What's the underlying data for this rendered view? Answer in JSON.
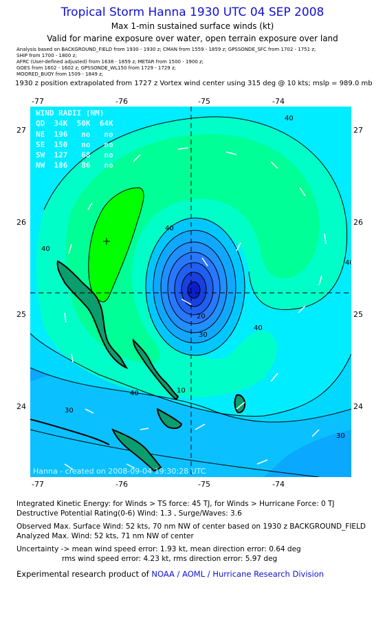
{
  "header": {
    "title": "Tropical Storm Hanna 1930 UTC 04 SEP 2008",
    "subtitle1": "Max 1-min sustained surface winds (kt)",
    "subtitle2": "Valid for marine exposure over water, open terrain exposure over land"
  },
  "sources": [
    "Analysis based on  BACKGROUND_FIELD from 1930 - 1930 z;  CMAN from 1559 - 1859 z;  GPSSONDE_SFC from 1702 - 1751 z;",
    "SHIP from 1700 - 1800 z;",
    "AFRC (User-defined adjusted) from 1638 - 1859 z;  METAR from 1500 - 1900 z;",
    "GOES from 1602 - 1602 z;  GPSSONDE_WL150 from 1729 - 1729 z;",
    "MOORED_BUOY from 1509 - 1849 z;"
  ],
  "position_note": "1930 z position extrapolated from 1727 z Vortex wind center using 315 deg @ 10 kts; mslp = 989.0 mb",
  "map": {
    "lon_ticks": [
      "-77",
      "-76",
      "-75",
      "-74"
    ],
    "lat_ticks": [
      "27",
      "26",
      "25",
      "24"
    ],
    "contour_labels": [
      "40",
      "40",
      "40",
      "40",
      "40",
      "40",
      "30",
      "30",
      "30",
      "20",
      "10"
    ],
    "wind_radii": {
      "title": "WIND RADII (NM)",
      "header": "QD  34K  50K  64K",
      "rows": [
        "NE  196   no   no",
        "SE  150   no   no",
        "SW  127   68   no",
        "NW  186   86   no"
      ]
    },
    "credit": "Hanna - created on 2008-09-04  19:30:28 UTC",
    "colors": {
      "ocean_deep": "#0aa8ff",
      "ocean_30": "#00d8ff",
      "band_40": "#00ffdc",
      "band_45": "#00ff96",
      "band_50": "#00ff00",
      "core_blue": "#1040ff"
    }
  },
  "info": {
    "ike": "Integrated Kinetic Energy:  for Winds > TS force: 45 TJ,  for Winds > Hurricane Force: 0 TJ",
    "dpr": "Destructive Potential Rating(0-6)   Wind: 1.3 , Surge/Waves: 3.6",
    "observed_max": "Observed Max. Surface Wind: 52 kts, 70 nm NW of center based on 1930 z BACKGROUND_FIELD",
    "analyzed_max": "Analyzed Max. Wind: 52 kts, 71 nm NW of center",
    "uncertainty1": "Uncertainty -> mean wind speed error: 1.93 kt,   mean direction error: 0.64 deg",
    "uncertainty2": "rms wind speed error: 4.23 kt,   rms direction error: 5.97 deg",
    "product_prefix": "Experimental research product of ",
    "product_org": "NOAA / AOML / Hurricane Research Division"
  }
}
